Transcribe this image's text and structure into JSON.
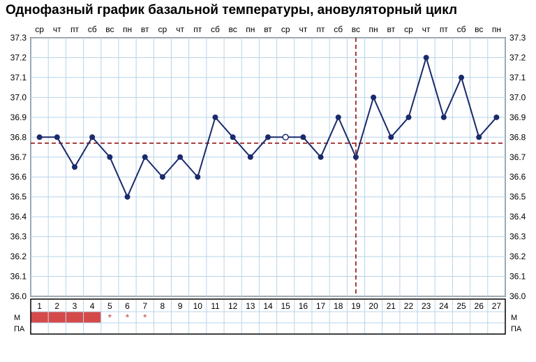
{
  "title": "Однофазный график базальной температуры, ановуляторный цикл",
  "chart": {
    "type": "line",
    "y": {
      "min": 36.0,
      "max": 37.3,
      "step": 0.1
    },
    "days": [
      1,
      2,
      3,
      4,
      5,
      6,
      7,
      8,
      9,
      10,
      11,
      12,
      13,
      14,
      15,
      16,
      17,
      18,
      19,
      20,
      21,
      22,
      23,
      24,
      25,
      26,
      27
    ],
    "weekdays": [
      "ср",
      "чт",
      "пт",
      "сб",
      "вс",
      "пн",
      "вт",
      "ср",
      "чт",
      "пт",
      "сб",
      "вс",
      "пн",
      "вт",
      "ср",
      "чт",
      "пт",
      "сб",
      "вс",
      "пн",
      "вт",
      "ср",
      "чт",
      "пт",
      "сб",
      "вс",
      "пн"
    ],
    "values": [
      36.8,
      36.8,
      36.65,
      36.8,
      36.7,
      36.5,
      36.7,
      36.6,
      36.7,
      36.6,
      36.9,
      36.8,
      36.7,
      36.8,
      36.8,
      36.8,
      36.7,
      36.9,
      36.7,
      37.0,
      36.8,
      36.9,
      37.2,
      36.9,
      37.1,
      36.8,
      36.9
    ],
    "open_point_index": 14,
    "h_ref": 36.77,
    "v_ref_day": 19,
    "menstruation_days": [
      1,
      2,
      3,
      4
    ],
    "star_days": [
      5,
      6,
      7
    ],
    "colors": {
      "grid": "#b8d4e8",
      "line": "#1a2a6c",
      "ref": "#8b0000",
      "menst": "#d44a4a",
      "star": "#c05050",
      "bg": "#ffffff",
      "text": "#000000"
    },
    "line_width": 2,
    "marker_radius": 4,
    "bottom_rows": [
      "М",
      "ПА"
    ]
  }
}
